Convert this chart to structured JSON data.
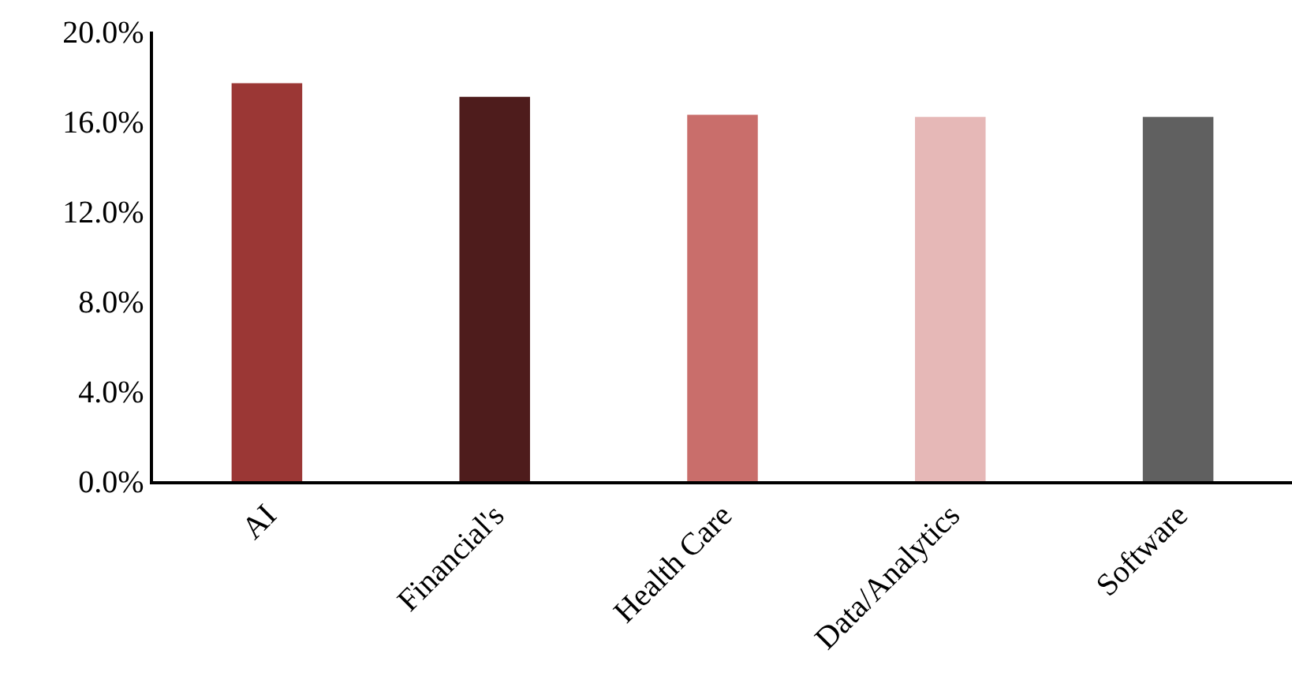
{
  "chart_data": {
    "type": "bar",
    "categories": [
      "AI",
      "Financial's",
      "Health Care",
      "Data/Analytics",
      "Software"
    ],
    "values": [
      17.7,
      17.1,
      16.3,
      16.2,
      16.2
    ],
    "colors": [
      "#9b3735",
      "#4e1c1c",
      "#c96e6b",
      "#e6b8b7",
      "#606060"
    ],
    "ylim": [
      0,
      20
    ],
    "yticks": [
      {
        "value": 0,
        "label": "0.0%"
      },
      {
        "value": 4,
        "label": "4.0%"
      },
      {
        "value": 8,
        "label": "8.0%"
      },
      {
        "value": 12,
        "label": "12.0%"
      },
      {
        "value": 16,
        "label": "16.0%"
      },
      {
        "value": 20,
        "label": "20.0%"
      }
    ]
  }
}
